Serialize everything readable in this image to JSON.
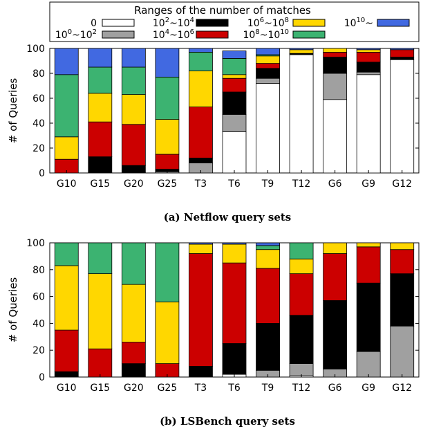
{
  "legend": {
    "title": "Ranges of the number of matches",
    "items": [
      {
        "label": "0",
        "sup": "",
        "color": "#ffffff"
      },
      {
        "label": "10",
        "sup": "0",
        "mid": "~10",
        "sup2": "2",
        "color": "#a0a0a0"
      },
      {
        "label": "10",
        "sup": "2",
        "mid": "~10",
        "sup2": "4",
        "color": "#000000"
      },
      {
        "label": "10",
        "sup": "4",
        "mid": "~10",
        "sup2": "6",
        "color": "#cc0000"
      },
      {
        "label": "10",
        "sup": "6",
        "mid": "~10",
        "sup2": "8",
        "color": "#ffd700"
      },
      {
        "label": "10",
        "sup": "8",
        "mid": "~10",
        "sup2": "10",
        "color": "#3cb371"
      },
      {
        "label": "10",
        "sup": "10",
        "mid": "~",
        "sup2": "",
        "color": "#4169e1"
      }
    ]
  },
  "chart_data": [
    {
      "type": "bar",
      "stacked": true,
      "caption": "(a) Netflow query sets",
      "ylabel": "# of Queries",
      "ylim": [
        0,
        100
      ],
      "yticks": [
        0,
        20,
        40,
        60,
        80,
        100
      ],
      "categories": [
        "G10",
        "G15",
        "G20",
        "G25",
        "T3",
        "T6",
        "T9",
        "T12",
        "G6",
        "G9",
        "G12"
      ],
      "series": [
        {
          "name": "0",
          "values": [
            0,
            0,
            0,
            0,
            0,
            33,
            72,
            95,
            59,
            79,
            91
          ]
        },
        {
          "name": "10^0~10^2",
          "values": [
            0,
            0,
            0,
            1,
            8,
            14,
            4,
            0,
            21,
            2,
            0
          ]
        },
        {
          "name": "10^2~10^4",
          "values": [
            0,
            13,
            6,
            2,
            4,
            18,
            8,
            1,
            13,
            8,
            2
          ]
        },
        {
          "name": "10^4~10^6",
          "values": [
            11,
            28,
            33,
            12,
            41,
            11,
            4,
            0,
            4,
            8,
            6
          ]
        },
        {
          "name": "10^6~10^8",
          "values": [
            18,
            23,
            24,
            28,
            29,
            3,
            6,
            3,
            3,
            2,
            0
          ]
        },
        {
          "name": "10^8~10^10",
          "values": [
            50,
            21,
            22,
            34,
            15,
            13,
            1,
            0,
            0,
            0,
            0
          ]
        },
        {
          "name": "10^10~",
          "values": [
            21,
            15,
            15,
            23,
            3,
            6,
            5,
            1,
            0,
            1,
            1
          ]
        }
      ]
    },
    {
      "type": "bar",
      "stacked": true,
      "caption": "(b) LSBench query sets",
      "ylabel": "# of Queries",
      "ylim": [
        0,
        100
      ],
      "yticks": [
        0,
        20,
        40,
        60,
        80,
        100
      ],
      "categories": [
        "G10",
        "G15",
        "G20",
        "G25",
        "T3",
        "T6",
        "T9",
        "T12",
        "G6",
        "G9",
        "G12"
      ],
      "series": [
        {
          "name": "0",
          "values": [
            0,
            0,
            0,
            0,
            0,
            2,
            0,
            1,
            0,
            0,
            0
          ]
        },
        {
          "name": "10^0~10^2",
          "values": [
            0,
            0,
            0,
            0,
            0,
            0,
            5,
            9,
            6,
            19,
            38
          ]
        },
        {
          "name": "10^2~10^4",
          "values": [
            4,
            0,
            10,
            0,
            8,
            23,
            35,
            36,
            51,
            51,
            39
          ]
        },
        {
          "name": "10^4~10^6",
          "values": [
            31,
            21,
            16,
            10,
            84,
            60,
            41,
            31,
            35,
            27,
            18
          ]
        },
        {
          "name": "10^6~10^8",
          "values": [
            48,
            56,
            43,
            46,
            7,
            14,
            14,
            11,
            8,
            3,
            5
          ]
        },
        {
          "name": "10^8~10^10",
          "values": [
            17,
            23,
            31,
            44,
            0,
            0,
            3,
            12,
            0,
            0,
            0
          ]
        },
        {
          "name": "10^10~",
          "values": [
            0,
            0,
            0,
            0,
            1,
            1,
            2,
            0,
            0,
            0,
            0
          ]
        }
      ]
    }
  ]
}
